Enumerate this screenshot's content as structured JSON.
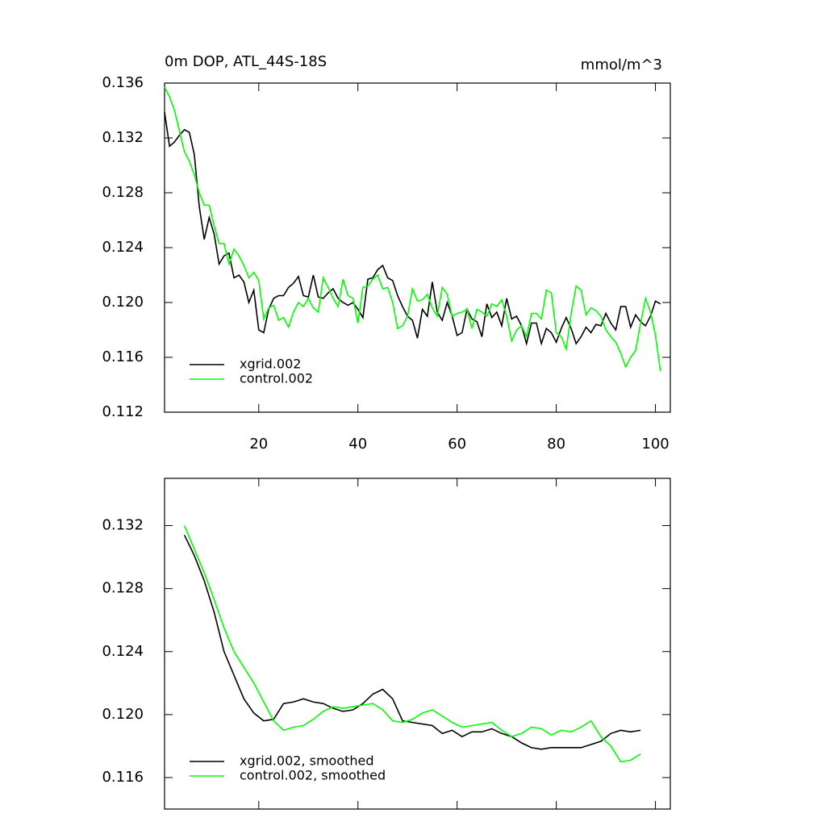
{
  "chart_data": [
    {
      "type": "line",
      "title": "0m DOP, ATL_44S-18S",
      "subtitle": "mmol/m^3",
      "x": [
        1,
        2,
        3,
        4,
        5,
        6,
        7,
        8,
        9,
        10,
        11,
        12,
        13,
        14,
        15,
        16,
        17,
        18,
        19,
        20,
        21,
        22,
        23,
        24,
        25,
        26,
        27,
        28,
        29,
        30,
        31,
        32,
        33,
        34,
        35,
        36,
        37,
        38,
        39,
        40,
        41,
        42,
        43,
        44,
        45,
        46,
        47,
        48,
        49,
        50,
        51,
        52,
        53,
        54,
        55,
        56,
        57,
        58,
        59,
        60,
        61,
        62,
        63,
        64,
        65,
        66,
        67,
        68,
        69,
        70,
        71,
        72,
        73,
        74,
        75,
        76,
        77,
        78,
        79,
        80,
        81,
        82,
        83,
        84,
        85,
        86,
        87,
        88,
        89,
        90,
        91,
        92,
        93,
        94,
        95,
        96,
        97,
        98,
        99,
        100,
        101
      ],
      "series": [
        {
          "name": "xgrid.002",
          "color": "#000000",
          "values": [
            0.1339,
            0.1314,
            0.1317,
            0.1322,
            0.1326,
            0.1324,
            0.1308,
            0.127,
            0.1246,
            0.1262,
            0.125,
            0.1228,
            0.1234,
            0.1236,
            0.1218,
            0.122,
            0.1215,
            0.12,
            0.1209,
            0.118,
            0.1178,
            0.1195,
            0.1203,
            0.1205,
            0.1205,
            0.1211,
            0.1214,
            0.1219,
            0.1205,
            0.1204,
            0.122,
            0.1204,
            0.1203,
            0.1207,
            0.121,
            0.1203,
            0.12,
            0.1198,
            0.12,
            0.1195,
            0.1189,
            0.1217,
            0.1218,
            0.1224,
            0.1227,
            0.1218,
            0.1216,
            0.1205,
            0.1197,
            0.119,
            0.1187,
            0.1174,
            0.1195,
            0.119,
            0.1215,
            0.1193,
            0.1187,
            0.12,
            0.119,
            0.1176,
            0.1178,
            0.1195,
            0.1188,
            0.1186,
            0.1175,
            0.1199,
            0.1189,
            0.1193,
            0.1183,
            0.1203,
            0.1188,
            0.119,
            0.1183,
            0.117,
            0.1185,
            0.1185,
            0.117,
            0.1181,
            0.1178,
            0.1171,
            0.1181,
            0.1189,
            0.1181,
            0.117,
            0.1175,
            0.1182,
            0.1178,
            0.1184,
            0.1183,
            0.1192,
            0.1185,
            0.118,
            0.1197,
            0.1197,
            0.1182,
            0.1191,
            0.1186,
            0.1183,
            0.119,
            0.1201,
            0.1199
          ]
        },
        {
          "name": "control.002",
          "color": "#00ff00",
          "values": [
            0.1357,
            0.135,
            0.134,
            0.1325,
            0.131,
            0.1303,
            0.1293,
            0.128,
            0.1271,
            0.1271,
            0.1256,
            0.1243,
            0.1243,
            0.1228,
            0.1239,
            0.1234,
            0.1227,
            0.1218,
            0.1222,
            0.1216,
            0.1188,
            0.1196,
            0.1198,
            0.1187,
            0.1189,
            0.1182,
            0.1193,
            0.12,
            0.1197,
            0.1203,
            0.1196,
            0.1193,
            0.1218,
            0.1211,
            0.1203,
            0.1197,
            0.1217,
            0.1205,
            0.1203,
            0.1185,
            0.1211,
            0.1212,
            0.1217,
            0.122,
            0.121,
            0.1211,
            0.12,
            0.1181,
            0.1183,
            0.119,
            0.121,
            0.1201,
            0.1202,
            0.1206,
            0.1196,
            0.119,
            0.1211,
            0.1206,
            0.119,
            0.1192,
            0.1193,
            0.1195,
            0.1181,
            0.1195,
            0.1193,
            0.119,
            0.1199,
            0.1197,
            0.1202,
            0.119,
            0.1172,
            0.118,
            0.1183,
            0.1175,
            0.1192,
            0.1192,
            0.1188,
            0.1209,
            0.1207,
            0.1178,
            0.1175,
            0.1166,
            0.1192,
            0.1212,
            0.1209,
            0.1191,
            0.1196,
            0.1194,
            0.119,
            0.118,
            0.1175,
            0.1171,
            0.1163,
            0.1153,
            0.116,
            0.1165,
            0.1185,
            0.1203,
            0.1193,
            0.1176,
            0.115
          ]
        }
      ],
      "xlim": [
        1,
        103
      ],
      "xticks": [
        20,
        40,
        60,
        80,
        100
      ],
      "xtick_labels": true,
      "ylim": [
        0.112,
        0.136
      ],
      "yticks": [
        0.112,
        0.116,
        {
          "value": 0.12,
          "label": "0.120"
        },
        0.124,
        0.128,
        0.132,
        0.136
      ],
      "legend_position": "lower left"
    },
    {
      "type": "line",
      "x": [
        5,
        7,
        9,
        11,
        13,
        15,
        17,
        19,
        21,
        23,
        25,
        27,
        29,
        31,
        33,
        35,
        37,
        39,
        41,
        43,
        45,
        47,
        49,
        51,
        53,
        55,
        57,
        59,
        61,
        63,
        65,
        67,
        69,
        71,
        73,
        75,
        77,
        79,
        81,
        83,
        85,
        87,
        89,
        91,
        93,
        95,
        97
      ],
      "series": [
        {
          "name": "xgrid.002, smoothed",
          "color": "#000000",
          "values": [
            0.1314,
            0.1301,
            0.1285,
            0.1265,
            0.124,
            0.1225,
            0.121,
            0.1201,
            0.1196,
            0.1197,
            0.1207,
            0.1208,
            0.121,
            0.1208,
            0.1207,
            0.1204,
            0.1202,
            0.1203,
            0.1207,
            0.1213,
            0.1216,
            0.121,
            0.1196,
            0.1195,
            0.1194,
            0.1193,
            0.1188,
            0.119,
            0.1186,
            0.1189,
            0.1189,
            0.1191,
            0.1188,
            0.1186,
            0.1182,
            0.1179,
            0.1178,
            0.1179,
            0.1179,
            0.1179,
            0.1179,
            0.1181,
            0.1183,
            0.1188,
            0.119,
            0.1189,
            0.119
          ]
        },
        {
          "name": "control.002, smoothed",
          "color": "#00ff00",
          "values": [
            0.132,
            0.1305,
            0.129,
            0.1273,
            0.1255,
            0.124,
            0.123,
            0.122,
            0.1208,
            0.1196,
            0.119,
            0.1192,
            0.1193,
            0.1197,
            0.1202,
            0.1205,
            0.1204,
            0.1205,
            0.1206,
            0.1207,
            0.1203,
            0.1196,
            0.1195,
            0.1197,
            0.1201,
            0.1203,
            0.1199,
            0.1195,
            0.1192,
            0.1193,
            0.1194,
            0.1195,
            0.119,
            0.1186,
            0.1188,
            0.1192,
            0.1191,
            0.1187,
            0.119,
            0.1189,
            0.1192,
            0.1196,
            0.1186,
            0.118,
            0.117,
            0.1171,
            0.1175
          ]
        }
      ],
      "xlim": [
        1,
        103
      ],
      "xticks": [
        20,
        40,
        60,
        80,
        100
      ],
      "xtick_labels": false,
      "ylim": [
        0.114,
        0.135
      ],
      "yticks": [
        0.116,
        {
          "value": 0.12,
          "label": "0.120"
        },
        0.124,
        0.128,
        0.132
      ],
      "legend_position": "lower left"
    }
  ]
}
